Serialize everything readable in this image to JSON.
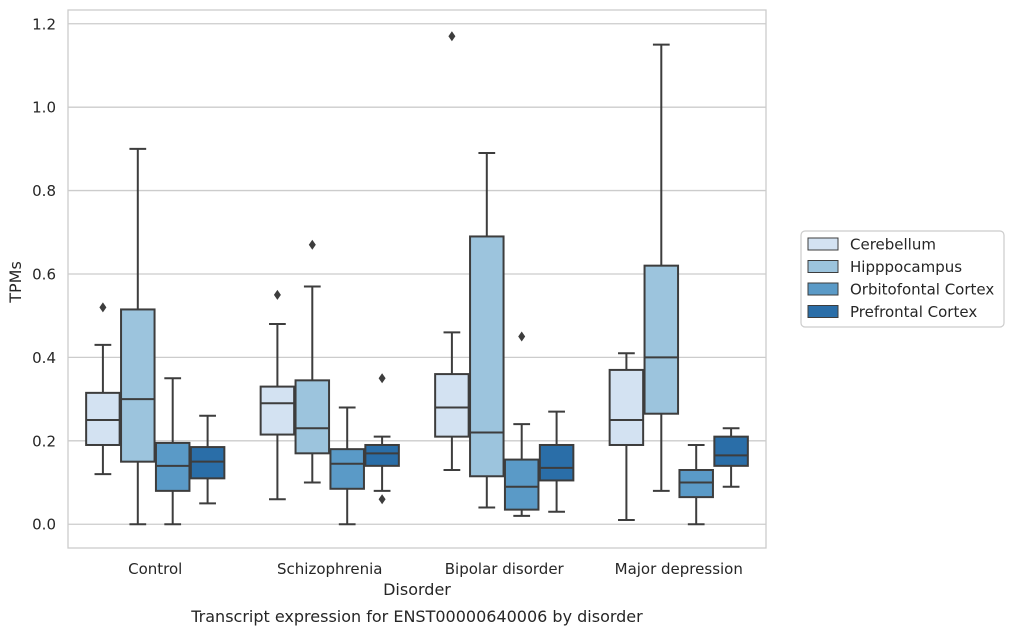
{
  "chart_data": {
    "type": "box",
    "title": "Transcript expression for ENST00000640006 by disorder",
    "xlabel": "Disorder",
    "ylabel": "TPMs",
    "ylim": [
      -0.057,
      1.233
    ],
    "yticks": [
      0.0,
      0.2,
      0.4,
      0.6,
      0.8,
      1.0,
      1.2
    ],
    "ytick_labels": [
      "0.0",
      "0.2",
      "0.4",
      "0.6",
      "0.8",
      "1.0",
      "1.2"
    ],
    "grid": "horizontal",
    "legend_placement": "center-right, outside plot",
    "categories": [
      "Control",
      "Schizophrenia",
      "Bipolar disorder",
      "Major depression"
    ],
    "series": [
      {
        "name": "Cerebellum",
        "color": "#d3e2f2",
        "boxes": [
          {
            "whislo": 0.12,
            "q1": 0.19,
            "med": 0.25,
            "q3": 0.315,
            "whishi": 0.43,
            "fliers": [
              0.52
            ]
          },
          {
            "whislo": 0.06,
            "q1": 0.215,
            "med": 0.29,
            "q3": 0.33,
            "whishi": 0.48,
            "fliers": [
              0.55
            ]
          },
          {
            "whislo": 0.13,
            "q1": 0.21,
            "med": 0.28,
            "q3": 0.36,
            "whishi": 0.46,
            "fliers": [
              1.17
            ]
          },
          {
            "whislo": 0.01,
            "q1": 0.19,
            "med": 0.25,
            "q3": 0.37,
            "whishi": 0.41,
            "fliers": []
          }
        ]
      },
      {
        "name": "Hipppocampus",
        "color": "#9cc4dd",
        "boxes": [
          {
            "whislo": 0.0,
            "q1": 0.15,
            "med": 0.3,
            "q3": 0.515,
            "whishi": 0.9,
            "fliers": []
          },
          {
            "whislo": 0.1,
            "q1": 0.17,
            "med": 0.23,
            "q3": 0.345,
            "whishi": 0.57,
            "fliers": [
              0.67
            ]
          },
          {
            "whislo": 0.04,
            "q1": 0.115,
            "med": 0.22,
            "q3": 0.69,
            "whishi": 0.89,
            "fliers": []
          },
          {
            "whislo": 0.08,
            "q1": 0.265,
            "med": 0.4,
            "q3": 0.62,
            "whishi": 1.15,
            "fliers": []
          }
        ]
      },
      {
        "name": "Orbitofontal Cortex",
        "color": "#5a9ac7",
        "boxes": [
          {
            "whislo": 0.0,
            "q1": 0.08,
            "med": 0.14,
            "q3": 0.195,
            "whishi": 0.35,
            "fliers": []
          },
          {
            "whislo": 0.0,
            "q1": 0.085,
            "med": 0.145,
            "q3": 0.18,
            "whishi": 0.28,
            "fliers": []
          },
          {
            "whislo": 0.02,
            "q1": 0.035,
            "med": 0.09,
            "q3": 0.155,
            "whishi": 0.24,
            "fliers": [
              0.45
            ]
          },
          {
            "whislo": 0.0,
            "q1": 0.065,
            "med": 0.1,
            "q3": 0.13,
            "whishi": 0.19,
            "fliers": []
          }
        ]
      },
      {
        "name": "Prefrontal Cortex",
        "color": "#2a6ea8",
        "boxes": [
          {
            "whislo": 0.05,
            "q1": 0.11,
            "med": 0.15,
            "q3": 0.185,
            "whishi": 0.26,
            "fliers": []
          },
          {
            "whislo": 0.08,
            "q1": 0.14,
            "med": 0.17,
            "q3": 0.19,
            "whishi": 0.21,
            "fliers": [
              0.35,
              0.06
            ]
          },
          {
            "whislo": 0.03,
            "q1": 0.105,
            "med": 0.135,
            "q3": 0.19,
            "whishi": 0.27,
            "fliers": []
          },
          {
            "whislo": 0.09,
            "q1": 0.14,
            "med": 0.165,
            "q3": 0.21,
            "whishi": 0.23,
            "fliers": []
          }
        ]
      }
    ]
  }
}
